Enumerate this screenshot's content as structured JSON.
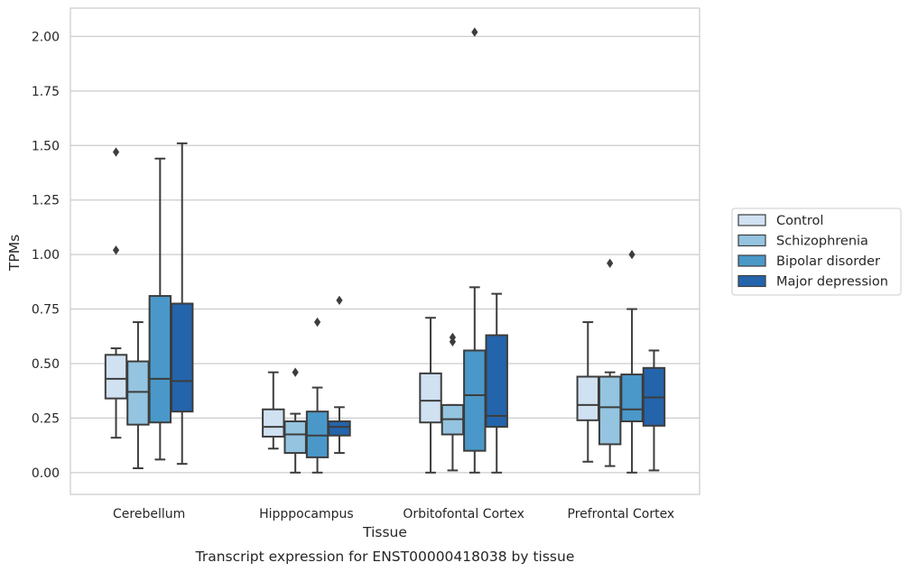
{
  "chart_data": {
    "type": "box",
    "title": "Transcript expression for ENST00000418038 by tissue",
    "xlabel": "Tissue",
    "ylabel": "TPMs",
    "ylim": [
      -0.1,
      2.13
    ],
    "yticks": [
      "0.00",
      "0.25",
      "0.50",
      "0.75",
      "1.00",
      "1.25",
      "1.50",
      "1.75",
      "2.00"
    ],
    "grid": true,
    "legend_placement": "right",
    "categories": [
      "Cerebellum",
      "Hipppocampus",
      "Orbitofontal Cortex",
      "Prefrontal Cortex"
    ],
    "series": [
      {
        "name": "Control",
        "color": "#d0e1f2",
        "boxes": [
          {
            "whisker_low": 0.16,
            "q1": 0.34,
            "median": 0.43,
            "q3": 0.54,
            "whisker_high": 0.57,
            "outliers": [
              1.02,
              1.47
            ]
          },
          {
            "whisker_low": 0.11,
            "q1": 0.165,
            "median": 0.21,
            "q3": 0.29,
            "whisker_high": 0.46,
            "outliers": []
          },
          {
            "whisker_low": 0.0,
            "q1": 0.23,
            "median": 0.33,
            "q3": 0.455,
            "whisker_high": 0.71,
            "outliers": []
          },
          {
            "whisker_low": 0.05,
            "q1": 0.24,
            "median": 0.31,
            "q3": 0.44,
            "whisker_high": 0.69,
            "outliers": []
          }
        ]
      },
      {
        "name": "Schizophrenia",
        "color": "#94c4df",
        "boxes": [
          {
            "whisker_low": 0.02,
            "q1": 0.22,
            "median": 0.37,
            "q3": 0.51,
            "whisker_high": 0.69,
            "outliers": []
          },
          {
            "whisker_low": 0.0,
            "q1": 0.09,
            "median": 0.175,
            "q3": 0.235,
            "whisker_high": 0.27,
            "outliers": [
              0.46
            ]
          },
          {
            "whisker_low": 0.01,
            "q1": 0.175,
            "median": 0.245,
            "q3": 0.31,
            "whisker_high": 0.31,
            "outliers": [
              0.6,
              0.62
            ]
          },
          {
            "whisker_low": 0.03,
            "q1": 0.13,
            "median": 0.3,
            "q3": 0.44,
            "whisker_high": 0.46,
            "outliers": [
              0.96
            ]
          }
        ]
      },
      {
        "name": "Bipolar disorder",
        "color": "#4a98c9",
        "boxes": [
          {
            "whisker_low": 0.06,
            "q1": 0.23,
            "median": 0.43,
            "q3": 0.81,
            "whisker_high": 1.44,
            "outliers": []
          },
          {
            "whisker_low": 0.0,
            "q1": 0.07,
            "median": 0.17,
            "q3": 0.28,
            "whisker_high": 0.39,
            "outliers": [
              0.69
            ]
          },
          {
            "whisker_low": 0.0,
            "q1": 0.1,
            "median": 0.355,
            "q3": 0.56,
            "whisker_high": 0.85,
            "outliers": [
              2.02
            ]
          },
          {
            "whisker_low": 0.0,
            "q1": 0.235,
            "median": 0.29,
            "q3": 0.45,
            "whisker_high": 0.75,
            "outliers": [
              1.0
            ]
          }
        ]
      },
      {
        "name": "Major depression",
        "color": "#2464ab",
        "boxes": [
          {
            "whisker_low": 0.04,
            "q1": 0.28,
            "median": 0.42,
            "q3": 0.775,
            "whisker_high": 1.51,
            "outliers": []
          },
          {
            "whisker_low": 0.09,
            "q1": 0.17,
            "median": 0.21,
            "q3": 0.235,
            "whisker_high": 0.3,
            "outliers": [
              0.79
            ]
          },
          {
            "whisker_low": 0.0,
            "q1": 0.21,
            "median": 0.26,
            "q3": 0.63,
            "whisker_high": 0.82,
            "outliers": []
          },
          {
            "whisker_low": 0.01,
            "q1": 0.215,
            "median": 0.345,
            "q3": 0.48,
            "whisker_high": 0.56,
            "outliers": []
          }
        ]
      }
    ]
  }
}
